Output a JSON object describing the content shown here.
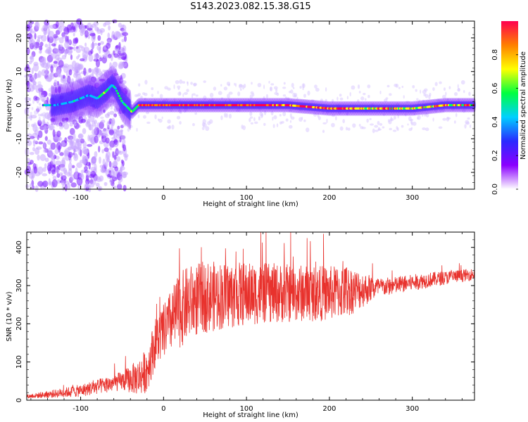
{
  "figure": {
    "title": "S143.2023.082.15.38.G15"
  },
  "chart_data": [
    {
      "type": "heatmap",
      "title": "",
      "xlabel": "Height of straight line (km)",
      "ylabel": "Frequency (Hz)",
      "xlim": [
        -165,
        375
      ],
      "ylim": [
        -25,
        25
      ],
      "xticks": [
        -100,
        0,
        100,
        200,
        300
      ],
      "yticks": [
        -20,
        -10,
        0,
        10,
        20
      ],
      "colorbar": {
        "label": "Normalized spectral amplitude",
        "range": [
          0,
          1
        ],
        "ticks": [
          0.0,
          0.2,
          0.4,
          0.6,
          0.8
        ],
        "colors": [
          "#ffffff",
          "#8b00ff",
          "#2a2aff",
          "#00d0ff",
          "#00ff40",
          "#ffff00",
          "#ff8000",
          "#ff0050"
        ]
      },
      "ridge": {
        "x": [
          -150,
          -130,
          -110,
          -90,
          -80,
          -70,
          -62,
          -58,
          -54,
          -50,
          -46,
          -42,
          -38,
          -34,
          -30,
          -20,
          0,
          50,
          100,
          150,
          200,
          250,
          300,
          340,
          375
        ],
        "y": [
          0,
          0,
          1,
          3,
          2,
          4,
          6,
          5,
          3,
          1,
          0,
          -1,
          -2,
          -1,
          0,
          0,
          0,
          0,
          0,
          0,
          -1,
          -1,
          -1,
          0,
          0
        ]
      }
    },
    {
      "type": "line",
      "title": "",
      "xlabel": "Height of straight line (km)",
      "ylabel": "SNR (10 * v/v)",
      "xlim": [
        -165,
        375
      ],
      "ylim": [
        0,
        440
      ],
      "xticks": [
        -100,
        0,
        100,
        200,
        300
      ],
      "yticks": [
        0,
        100,
        200,
        300,
        400
      ],
      "series": [
        {
          "color": "#e8322d",
          "envelope": {
            "x": [
              -165,
              -140,
              -120,
              -100,
              -80,
              -60,
              -40,
              -30,
              -20,
              -10,
              0,
              10,
              20,
              30,
              50,
              80,
              120,
              160,
              200,
              240,
              280,
              320,
              375
            ],
            "y": [
              10,
              15,
              20,
              25,
              35,
              45,
              55,
              60,
              80,
              150,
              180,
              210,
              235,
              255,
              270,
              275,
              280,
              280,
              280,
              290,
              300,
              315,
              330
            ]
          },
          "noise": {
            "x": [
              -165,
              -50,
              -20,
              0,
              20,
              120,
              220,
              260,
              375
            ],
            "amp": [
              5,
              25,
              60,
              70,
              100,
              80,
              70,
              25,
              15
            ]
          }
        }
      ]
    }
  ]
}
